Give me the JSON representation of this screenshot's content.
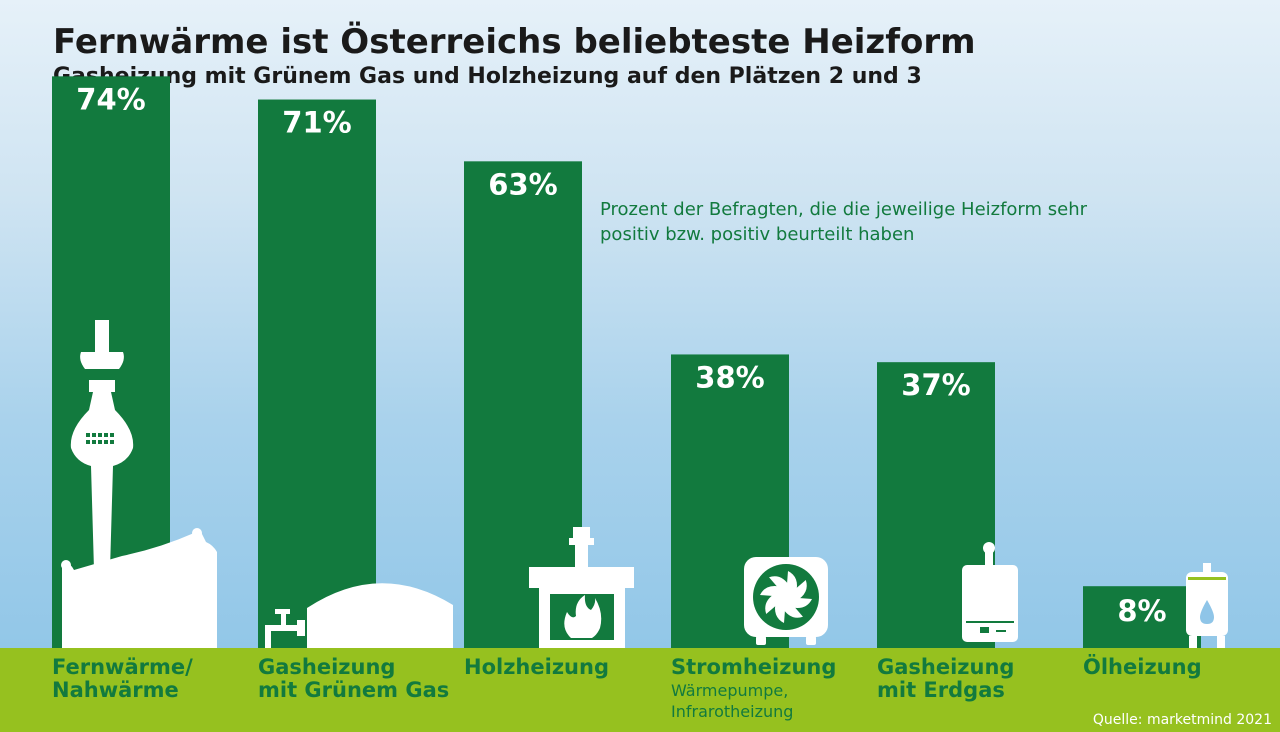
{
  "title": "Fernwärme ist Österreichs beliebteste Heizform",
  "subtitle": "Gasheizung mit Grünem Gas und Holzheizung auf den Plätzen 2 und 3",
  "note": "Prozent der Befragten, die die jeweilige Heizform sehr positiv bzw. positiv beurteilt haben",
  "source": "Quelle: marketmind 2021",
  "colors": {
    "bar": "#127a3e",
    "ground": "#96c11f",
    "icon": "#ffffff",
    "label": "#127a3e"
  },
  "chart_data": {
    "type": "bar",
    "unit": "%",
    "ylim": [
      0,
      80
    ],
    "categories": [
      {
        "label_lines": [
          "Fernwärme/",
          "Nahwärme"
        ],
        "sub_lines": [],
        "icon": "tv-tower-district-heating-icon"
      },
      {
        "label_lines": [
          "Gasheizung",
          "mit Grünem Gas"
        ],
        "sub_lines": [],
        "icon": "biogas-tank-icon"
      },
      {
        "label_lines": [
          "Holzheizung"
        ],
        "sub_lines": [],
        "icon": "wood-stove-icon"
      },
      {
        "label_lines": [
          "Stromheizung"
        ],
        "sub_lines": [
          "Wärmepumpe,",
          "Infrarotheizung"
        ],
        "icon": "heat-pump-fan-icon"
      },
      {
        "label_lines": [
          "Gasheizung",
          "mit Erdgas"
        ],
        "sub_lines": [],
        "icon": "gas-boiler-icon"
      },
      {
        "label_lines": [
          "Ölheizung"
        ],
        "sub_lines": [],
        "icon": "oil-tank-icon"
      }
    ],
    "values": [
      74,
      71,
      63,
      38,
      37,
      8
    ],
    "value_labels": [
      "74%",
      "71%",
      "63%",
      "38%",
      "37%",
      "8%"
    ]
  }
}
